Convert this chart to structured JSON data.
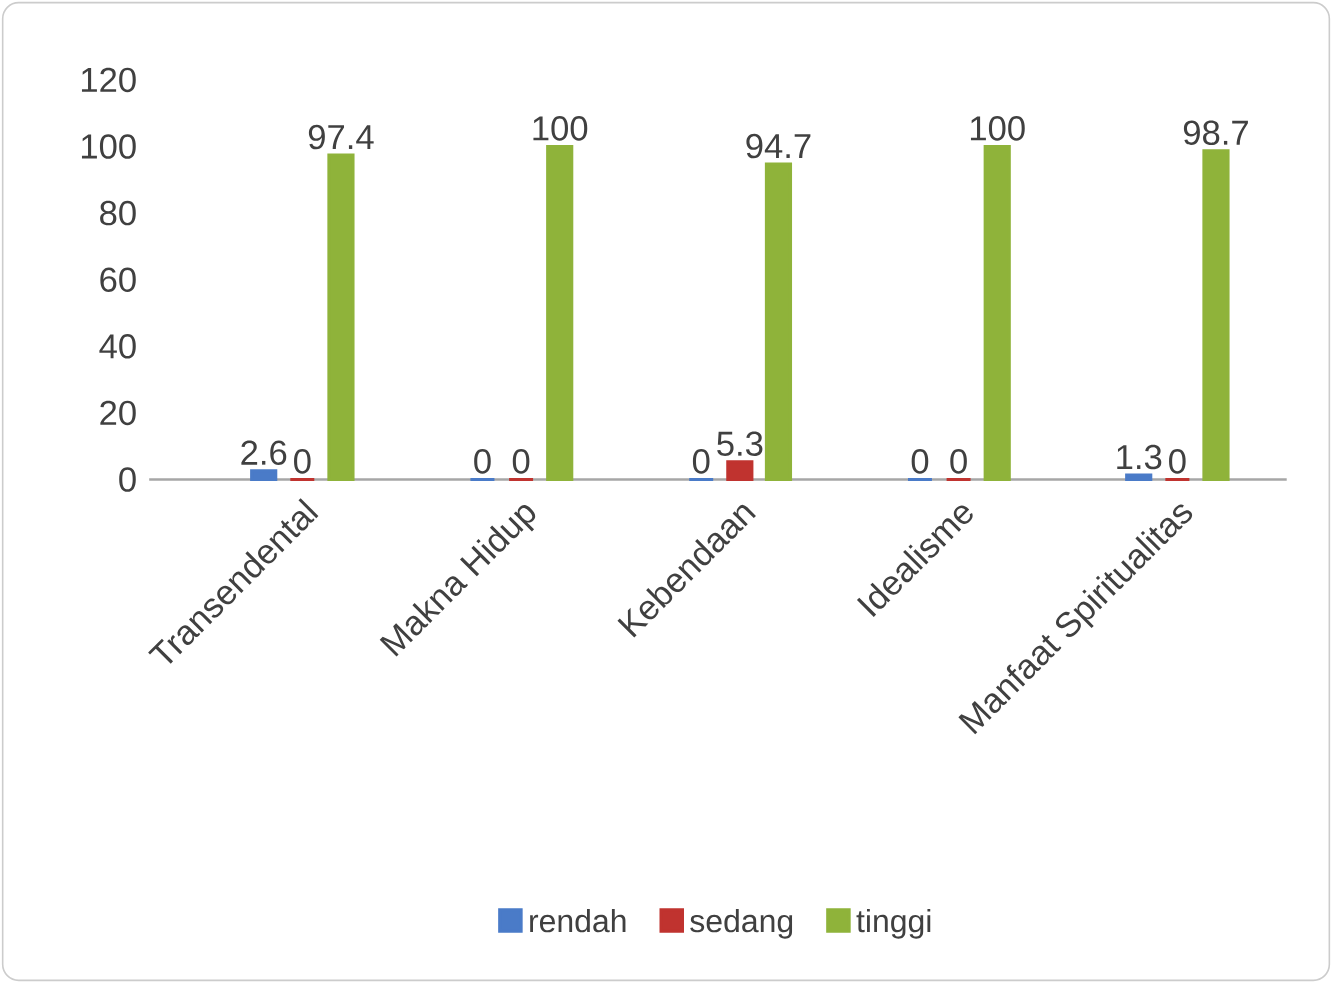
{
  "chart_data": {
    "type": "bar",
    "categories": [
      "Transendental",
      "Makna Hidup",
      "Kebendaan",
      "Idealisme",
      "Manfaat Spiritualitas"
    ],
    "series": [
      {
        "name": "rendah",
        "color": "#4a7bc8",
        "values": [
          2.6,
          0,
          0,
          0,
          1.3
        ]
      },
      {
        "name": "sedang",
        "color": "#c0332f",
        "values": [
          0,
          0,
          5.3,
          0,
          0
        ]
      },
      {
        "name": "tinggi",
        "color": "#8fb33a",
        "values": [
          97.4,
          100,
          94.7,
          100,
          98.7
        ]
      }
    ],
    "ylim": [
      0,
      120
    ],
    "yticks": [
      0,
      20,
      40,
      60,
      80,
      100,
      120
    ],
    "data_labels": true,
    "legend": "bottom",
    "grid": false
  }
}
